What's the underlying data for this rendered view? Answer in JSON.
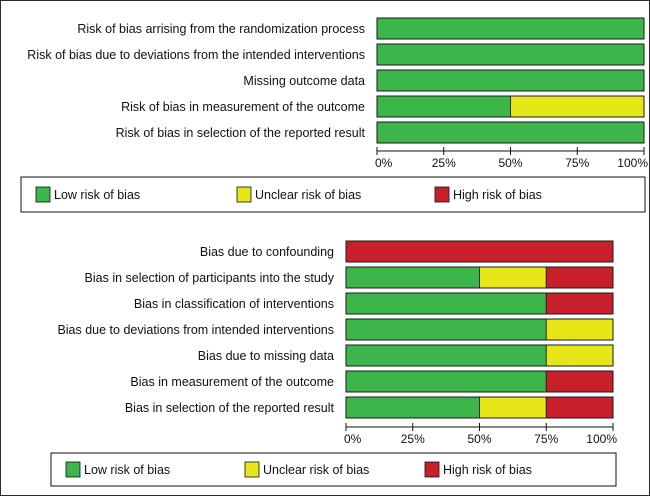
{
  "colors": {
    "low": "#3cb64b",
    "unclear": "#e6e619",
    "high": "#c8202a"
  },
  "chart_data": [
    {
      "type": "bar",
      "orientation": "horizontal",
      "stacked": true,
      "xlim": [
        0,
        100
      ],
      "x_tick_labels": [
        "0%",
        "25%",
        "50%",
        "75%",
        "100%"
      ],
      "categories": [
        "Risk of bias arrising from the randomization process",
        "Risk of bias due to deviations from the intended interventions",
        "Missing outcome data",
        "Risk of bias in measurement of the outcome",
        "Risk of bias in selection of the reported result"
      ],
      "series": [
        {
          "name": "Low risk of bias",
          "color_key": "low",
          "values": [
            100,
            100,
            100,
            50,
            100
          ]
        },
        {
          "name": "Unclear risk of bias",
          "color_key": "unclear",
          "values": [
            0,
            0,
            0,
            50,
            0
          ]
        },
        {
          "name": "High risk of bias",
          "color_key": "high",
          "values": [
            0,
            0,
            0,
            0,
            0
          ]
        }
      ],
      "legend_position": "bottom"
    },
    {
      "type": "bar",
      "orientation": "horizontal",
      "stacked": true,
      "xlim": [
        0,
        100
      ],
      "x_tick_labels": [
        "0%",
        "25%",
        "50%",
        "75%",
        "100%"
      ],
      "categories": [
        "Bias due to confounding",
        "Bias in selection of participants into the study",
        "Bias in classification of interventions",
        "Bias due to deviations from intended interventions",
        "Bias due to missing data",
        "Bias in measurement of the outcome",
        "Bias in selection of the reported result"
      ],
      "series": [
        {
          "name": "Low risk of bias",
          "color_key": "low",
          "values": [
            0,
            50,
            75,
            75,
            75,
            75,
            50
          ]
        },
        {
          "name": "Unclear risk of bias",
          "color_key": "unclear",
          "values": [
            0,
            25,
            0,
            25,
            25,
            0,
            25
          ]
        },
        {
          "name": "High risk of bias",
          "color_key": "high",
          "values": [
            100,
            25,
            25,
            0,
            0,
            25,
            25
          ]
        }
      ],
      "legend_position": "bottom"
    }
  ]
}
